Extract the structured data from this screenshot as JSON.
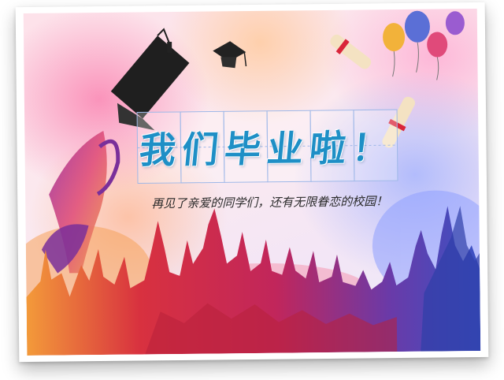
{
  "poster": {
    "title": "我们毕业啦！",
    "subtitle": "再见了亲爱的同学们，还有无限眷恋的校园！"
  },
  "colors": {
    "title": "#1e8fc6",
    "cap": "#222222",
    "scroll": "#f4e2c2",
    "ribbon": "#d9263a",
    "crowd_warm": "#d8313f",
    "crowd_cool": "#3a52c4"
  }
}
